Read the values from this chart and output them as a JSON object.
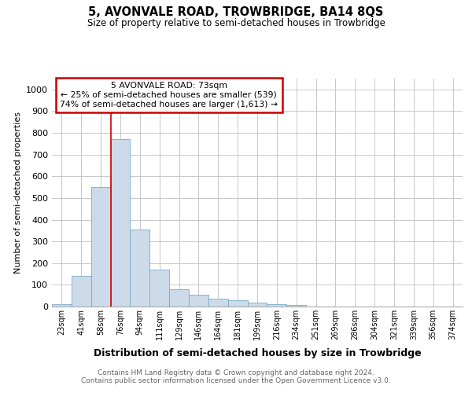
{
  "title1": "5, AVONVALE ROAD, TROWBRIDGE, BA14 8QS",
  "title2": "Size of property relative to semi-detached houses in Trowbridge",
  "xlabel": "Distribution of semi-detached houses by size in Trowbridge",
  "ylabel": "Number of semi-detached properties",
  "bar_color": "#ccdaea",
  "bar_edge_color": "#7aaac8",
  "categories": [
    "23sqm",
    "41sqm",
    "58sqm",
    "76sqm",
    "94sqm",
    "111sqm",
    "129sqm",
    "146sqm",
    "164sqm",
    "181sqm",
    "199sqm",
    "216sqm",
    "234sqm",
    "251sqm",
    "269sqm",
    "286sqm",
    "304sqm",
    "321sqm",
    "339sqm",
    "356sqm",
    "374sqm"
  ],
  "values": [
    10,
    140,
    550,
    770,
    355,
    170,
    80,
    55,
    35,
    30,
    18,
    10,
    8,
    0,
    0,
    0,
    0,
    0,
    0,
    0,
    0
  ],
  "ylim": [
    0,
    1050
  ],
  "yticks": [
    0,
    100,
    200,
    300,
    400,
    500,
    600,
    700,
    800,
    900,
    1000
  ],
  "red_line_x": 2.5,
  "annotation_line1": "5 AVONVALE ROAD: 73sqm",
  "annotation_line2": "← 25% of semi-detached houses are smaller (539)",
  "annotation_line3": "74% of semi-detached houses are larger (1,613) →",
  "red_line_color": "#cc0000",
  "footer1": "Contains HM Land Registry data © Crown copyright and database right 2024.",
  "footer2": "Contains public sector information licensed under the Open Government Licence v3.0.",
  "background_color": "#ffffff",
  "grid_color": "#c8c8c8"
}
